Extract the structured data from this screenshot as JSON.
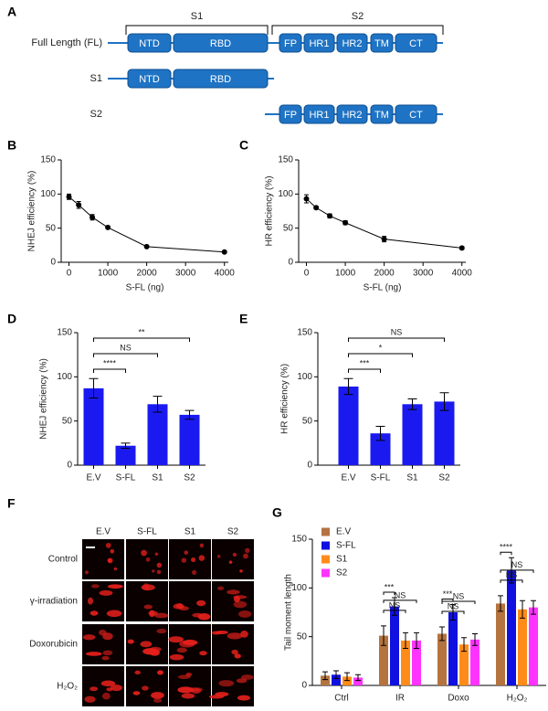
{
  "diagram": {
    "panel": "A",
    "groups": [
      {
        "label": "S1"
      },
      {
        "label": "S2"
      }
    ],
    "rows": [
      {
        "label": "Full Length (FL)",
        "domains": [
          "NTD",
          "RBD",
          "FP",
          "HR1",
          "HR2",
          "TM",
          "CT"
        ]
      },
      {
        "label": "S1",
        "domains": [
          "NTD",
          "RBD"
        ]
      },
      {
        "label": "S2",
        "domains": [
          "FP",
          "HR1",
          "HR2",
          "TM",
          "CT"
        ]
      }
    ]
  },
  "micrographs": {
    "panel": "F",
    "columns": [
      "E.V",
      "S-FL",
      "S1",
      "S2"
    ],
    "rows": [
      "Control",
      "γ-irradiation",
      "Doxorubicin",
      "H₂O₂"
    ]
  },
  "chart_data": [
    {
      "type": "line",
      "panel": "B",
      "xlabel": "S-FL (ng)",
      "ylabel": "NHEJ efficiency (%)",
      "color": "#000000",
      "x": [
        0,
        250,
        600,
        1000,
        2000,
        4000
      ],
      "values": [
        96,
        84,
        66,
        51,
        23,
        15
      ],
      "errors": [
        4,
        5,
        4,
        1,
        1,
        1
      ],
      "xlim": [
        -200,
        4100
      ],
      "xticks": [
        0,
        1000,
        2000,
        3000,
        4000
      ],
      "ylim": [
        0,
        150
      ],
      "yticks": [
        0,
        50,
        100,
        150
      ]
    },
    {
      "type": "line",
      "panel": "C",
      "xlabel": "S-FL (ng)",
      "ylabel": "HR efficiency (%)",
      "color": "#000000",
      "x": [
        0,
        250,
        600,
        1000,
        2000,
        4000
      ],
      "values": [
        93,
        80,
        68,
        58,
        34,
        21
      ],
      "errors": [
        6,
        2,
        3,
        3,
        4,
        2
      ],
      "xlim": [
        -200,
        4100
      ],
      "xticks": [
        0,
        1000,
        2000,
        3000,
        4000
      ],
      "ylim": [
        0,
        150
      ],
      "yticks": [
        0,
        50,
        100,
        150
      ]
    },
    {
      "type": "bar",
      "panel": "D",
      "ylabel": "NHEJ efficiency (%)",
      "color": "#1a1af0",
      "categories": [
        "E.V",
        "S-FL",
        "S1",
        "S2"
      ],
      "values": [
        87,
        22,
        69,
        57
      ],
      "errors": [
        11,
        3,
        9,
        5
      ],
      "ylim": [
        0,
        150
      ],
      "yticks": [
        0,
        50,
        100,
        150
      ],
      "comparisons": [
        {
          "pair": [
            0,
            1
          ],
          "label": "****"
        },
        {
          "pair": [
            0,
            2
          ],
          "label": "NS"
        },
        {
          "pair": [
            0,
            3
          ],
          "label": "**"
        }
      ]
    },
    {
      "type": "bar",
      "panel": "E",
      "ylabel": "HR efficiency (%)",
      "color": "#1a1af0",
      "categories": [
        "E.V",
        "S-FL",
        "S1",
        "S2"
      ],
      "values": [
        89,
        36,
        69,
        72
      ],
      "errors": [
        9,
        8,
        6,
        10
      ],
      "ylim": [
        0,
        150
      ],
      "yticks": [
        0,
        50,
        100,
        150
      ],
      "comparisons": [
        {
          "pair": [
            0,
            1
          ],
          "label": "***"
        },
        {
          "pair": [
            0,
            2
          ],
          "label": "*"
        },
        {
          "pair": [
            0,
            3
          ],
          "label": "NS"
        }
      ]
    },
    {
      "type": "grouped-bar",
      "panel": "G",
      "ylabel": "Tail moment length",
      "categories": [
        "Ctrl",
        "IR",
        "Doxo",
        "H₂O₂"
      ],
      "series": [
        {
          "name": "E.V",
          "color": "#b5733f",
          "values": [
            10,
            51,
            53,
            84
          ],
          "errors": [
            4,
            10,
            7,
            8
          ]
        },
        {
          "name": "S-FL",
          "color": "#1010e0",
          "values": [
            11,
            81,
            75,
            118
          ],
          "errors": [
            4,
            9,
            8,
            13
          ]
        },
        {
          "name": "S1",
          "color": "#ff8c1a",
          "values": [
            9,
            46,
            42,
            78
          ],
          "errors": [
            4,
            8,
            7,
            9
          ]
        },
        {
          "name": "S2",
          "color": "#ff33ff",
          "values": [
            8,
            46,
            47,
            80
          ],
          "errors": [
            3,
            8,
            6,
            7
          ]
        }
      ],
      "ylim": [
        0,
        150
      ],
      "yticks": [
        0,
        50,
        100,
        150
      ],
      "comparisons": [
        {
          "category": 1,
          "pair": [
            0,
            1
          ],
          "label": "***"
        },
        {
          "category": 1,
          "pair": [
            0,
            2
          ],
          "label": "NS"
        },
        {
          "category": 1,
          "pair": [
            0,
            3
          ],
          "label": "NS"
        },
        {
          "category": 2,
          "pair": [
            0,
            1
          ],
          "label": "***"
        },
        {
          "category": 2,
          "pair": [
            0,
            2
          ],
          "label": "NS"
        },
        {
          "category": 2,
          "pair": [
            0,
            3
          ],
          "label": "NS"
        },
        {
          "category": 3,
          "pair": [
            0,
            1
          ],
          "label": "****"
        },
        {
          "category": 3,
          "pair": [
            0,
            2
          ],
          "label": "NS"
        },
        {
          "category": 3,
          "pair": [
            0,
            3
          ],
          "label": "NS"
        }
      ]
    }
  ]
}
